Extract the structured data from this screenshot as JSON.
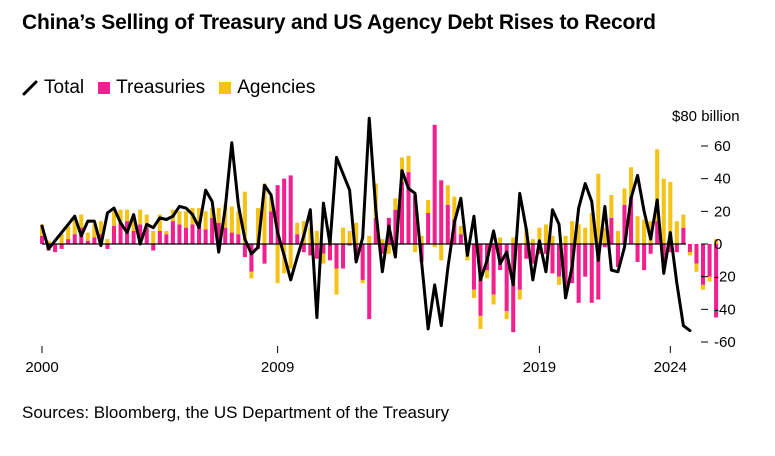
{
  "title": "China’s Selling of Treasury and US Agency Debt Rises to Record",
  "legend": {
    "total": "Total",
    "treasuries": "Treasuries",
    "agencies": "Agencies"
  },
  "unit_label": "$80 billion",
  "source": "Sources: Bloomberg, the US Department of the Treasury",
  "colors": {
    "treasuries": "#f1208f",
    "agencies": "#f5c216",
    "total": "#000000",
    "zero_line": "#000000"
  },
  "chart_data": {
    "type": "bar",
    "stacked": true,
    "title": "China’s Selling of Treasury and US Agency Debt Rises to Record",
    "ylabel": "$ billion",
    "ylim": [
      -60,
      80
    ],
    "yticks": [
      60,
      40,
      20,
      0,
      -20,
      -40,
      -60
    ],
    "ytick_labels": [
      "60",
      "40",
      "20",
      "0",
      "-20",
      "-40",
      "-60"
    ],
    "xlim": [
      2000,
      2024.6
    ],
    "xticks": [
      2000,
      2009,
      2019,
      2024
    ],
    "xtick_labels": [
      "2000",
      "2009",
      "2019",
      "2024"
    ],
    "x_start": 2000.0,
    "x_step": 0.25,
    "series": [
      {
        "name": "Treasuries",
        "values": [
          5,
          -4,
          -5,
          -3,
          3,
          6,
          10,
          2,
          4,
          6,
          -3,
          11,
          13,
          14,
          8,
          12,
          10,
          -4,
          8,
          6,
          14,
          12,
          10,
          12,
          14,
          9,
          16,
          13,
          10,
          7,
          6,
          -8,
          -17,
          -3,
          -12,
          20,
          36,
          40,
          42,
          6,
          -5,
          -7,
          -9,
          -6,
          -10,
          -15,
          -15,
          -1,
          -10,
          -22,
          -46,
          16,
          -6,
          16,
          21,
          38,
          44,
          30,
          -11,
          19,
          73,
          39,
          24,
          15,
          6,
          -5,
          -28,
          -44,
          -16,
          -31,
          -16,
          -41,
          -54,
          -28,
          -9,
          -12,
          -6,
          -6,
          -18,
          -20,
          -28,
          -24,
          -36,
          -20,
          -36,
          -34,
          -2,
          16,
          -14,
          24,
          29,
          -11,
          -16,
          -6,
          14,
          -14,
          -5,
          -5,
          10,
          -5,
          -12,
          -25,
          -20,
          -45
        ]
      },
      {
        "name": "Agencies",
        "values": [
          7,
          2,
          0,
          6,
          8,
          9,
          8,
          5,
          8,
          8,
          3,
          9,
          8,
          7,
          9,
          9,
          8,
          8,
          10,
          2,
          7,
          8,
          10,
          10,
          8,
          11,
          6,
          9,
          14,
          16,
          14,
          32,
          -4,
          22,
          37,
          9,
          -24,
          -18,
          -15,
          7,
          14,
          10,
          8,
          -6,
          3,
          -16,
          10,
          8,
          13,
          -2,
          5,
          21,
          3,
          -6,
          7,
          15,
          10,
          -5,
          5,
          8,
          -2,
          -10,
          12,
          14,
          5,
          -5,
          -5,
          -8,
          -5,
          -6,
          4,
          -5,
          4,
          -6,
          9,
          3,
          10,
          12,
          5,
          -5,
          5,
          14,
          12,
          10,
          19,
          43,
          10,
          14,
          8,
          10,
          18,
          17,
          15,
          14,
          44,
          40,
          38,
          14,
          8,
          -2,
          -5,
          -3,
          -3,
          3,
          -8
        ]
      },
      {
        "name": "Total",
        "type": "line",
        "values": [
          11,
          -3,
          2,
          7,
          12,
          17,
          5,
          14,
          14,
          -1,
          19,
          22,
          13,
          7,
          18,
          0,
          12,
          10,
          16,
          15,
          17,
          23,
          22,
          18,
          10,
          33,
          26,
          -5,
          22,
          62,
          24,
          3,
          -6,
          -2,
          36,
          30,
          7,
          -7,
          -22,
          -8,
          5,
          21,
          -45,
          25,
          0,
          53,
          43,
          33,
          -11,
          4,
          77,
          21,
          -17,
          11,
          -8,
          45,
          34,
          31,
          -11,
          -52,
          -25,
          -50,
          -15,
          13,
          28,
          -7,
          17,
          -22,
          -10,
          8,
          -12,
          -5,
          -25,
          31,
          9,
          -22,
          2,
          -17,
          21,
          12,
          -33,
          -14,
          22,
          37,
          26,
          -10,
          23,
          -16,
          -17,
          -2,
          28,
          42,
          20,
          3,
          27,
          -18,
          7,
          -24,
          -50,
          -53
        ]
      }
    ]
  }
}
